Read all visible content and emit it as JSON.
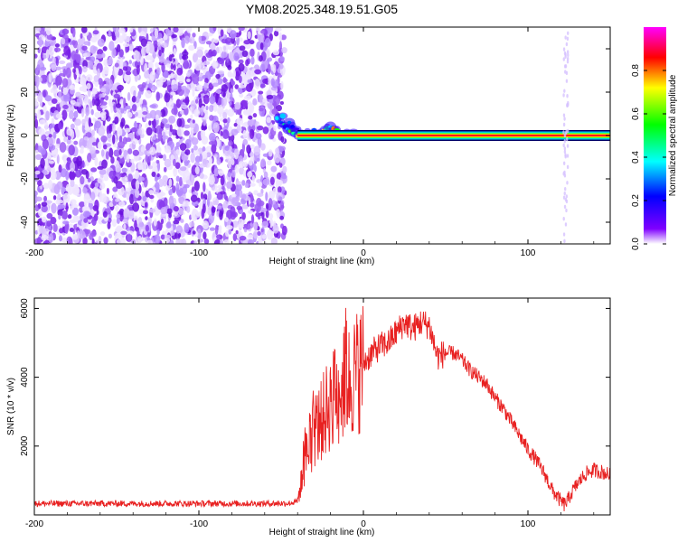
{
  "title": "YM08.2025.348.19.51.G05",
  "chart_data": [
    {
      "type": "heatmap",
      "xlabel": "Height of straight line (km)",
      "ylabel": "Frequency (Hz)",
      "xlim": [
        -200,
        150
      ],
      "ylim": [
        -50,
        50
      ],
      "xticks": [
        -200,
        -100,
        0,
        100
      ],
      "yticks": [
        -40,
        -20,
        0,
        20,
        40
      ],
      "xtick_labels": [
        "-200",
        "-100",
        "0",
        "100"
      ],
      "ytick_labels": [
        "-40",
        "-20",
        "0",
        "20",
        "40"
      ],
      "colorbar": {
        "label": "Normalized spectral amplitude",
        "range": [
          0,
          1
        ],
        "ticks": [
          0,
          0.2,
          0.4,
          0.6,
          0.8
        ],
        "tick_labels": [
          "0.0",
          "0.2",
          "0.4",
          "0.6",
          "0.8"
        ],
        "colors": [
          "#ffffff",
          "#7f00ff",
          "#0000ff",
          "#00ffff",
          "#00ff00",
          "#ffff00",
          "#ff0000",
          "#ff00ff"
        ]
      },
      "features": {
        "noise_region_x": [
          -200,
          -50
        ],
        "transition_x": [
          -52,
          -5
        ],
        "carrier_line": {
          "x_start": -40,
          "x_end": 150,
          "frequency": 0
        },
        "faint_band_x": 123
      }
    },
    {
      "type": "line",
      "xlabel": "Height of straight line (km)",
      "ylabel": "SNR (10 * v/v)",
      "xlim": [
        -200,
        150
      ],
      "ylim": [
        0,
        6300
      ],
      "xticks": [
        -200,
        -100,
        0,
        100
      ],
      "yticks": [
        2000,
        4000,
        6000
      ],
      "xtick_labels": [
        "-200",
        "-100",
        "0",
        "100"
      ],
      "ytick_labels": [
        "2000",
        "4000",
        "6000"
      ],
      "series": [
        {
          "name": "SNR",
          "color": "#e82020",
          "x": [
            -200,
            -150,
            -100,
            -60,
            -45,
            -40,
            -38,
            -35,
            -30,
            -25,
            -20,
            -15,
            -10,
            -5,
            0,
            5,
            10,
            15,
            20,
            25,
            30,
            35,
            40,
            45,
            50,
            55,
            60,
            65,
            70,
            75,
            80,
            85,
            90,
            95,
            100,
            105,
            110,
            115,
            120,
            122,
            124,
            126,
            130,
            135,
            140,
            145,
            150
          ],
          "y": [
            330,
            330,
            330,
            330,
            340,
            380,
            900,
            1700,
            2400,
            2800,
            3300,
            3600,
            3800,
            4100,
            4400,
            4700,
            4900,
            5000,
            5300,
            5600,
            5400,
            5600,
            5500,
            4600,
            4700,
            4700,
            4500,
            4200,
            4000,
            3800,
            3400,
            3100,
            2700,
            2300,
            1900,
            1600,
            1200,
            700,
            400,
            300,
            400,
            600,
            900,
            1200,
            1300,
            1250,
            1150
          ]
        }
      ]
    }
  ]
}
